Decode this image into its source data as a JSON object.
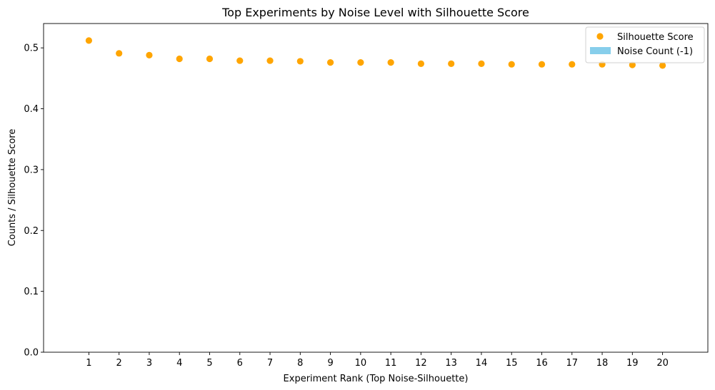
{
  "chart_data": {
    "type": "scatter",
    "title": "Top Experiments by Noise Level with Silhouette Score",
    "xlabel": "Experiment Rank (Top Noise-Silhouette)",
    "ylabel": "Counts / Silhouette Score",
    "x": [
      1,
      2,
      3,
      4,
      5,
      6,
      7,
      8,
      9,
      10,
      11,
      12,
      13,
      14,
      15,
      16,
      17,
      18,
      19,
      20
    ],
    "series": [
      {
        "name": "Silhouette Score",
        "kind": "scatter",
        "color": "#ffa500",
        "values": [
          0.512,
          0.491,
          0.488,
          0.482,
          0.482,
          0.479,
          0.479,
          0.478,
          0.476,
          0.476,
          0.476,
          0.474,
          0.474,
          0.474,
          0.473,
          0.473,
          0.473,
          0.473,
          0.472,
          0.471
        ]
      },
      {
        "name": "Noise Count (-1)",
        "kind": "bar",
        "color": "#87ceeb",
        "values": [
          0,
          0,
          0,
          0,
          0,
          0,
          0,
          0,
          0,
          0,
          0,
          0,
          0,
          0,
          0,
          0,
          0,
          0,
          0,
          0
        ]
      }
    ],
    "xlim": [
      -0.5,
      21.5
    ],
    "ylim": [
      0,
      0.54
    ],
    "yticks": [
      0.0,
      0.1,
      0.2,
      0.3,
      0.4,
      0.5
    ],
    "ytick_labels": [
      "0.0",
      "0.1",
      "0.2",
      "0.3",
      "0.4",
      "0.5"
    ],
    "xtick_labels": [
      "1",
      "2",
      "3",
      "4",
      "5",
      "6",
      "7",
      "8",
      "9",
      "10",
      "11",
      "12",
      "13",
      "14",
      "15",
      "16",
      "17",
      "18",
      "19",
      "20"
    ],
    "grid": false,
    "legend_position": "top-right"
  }
}
